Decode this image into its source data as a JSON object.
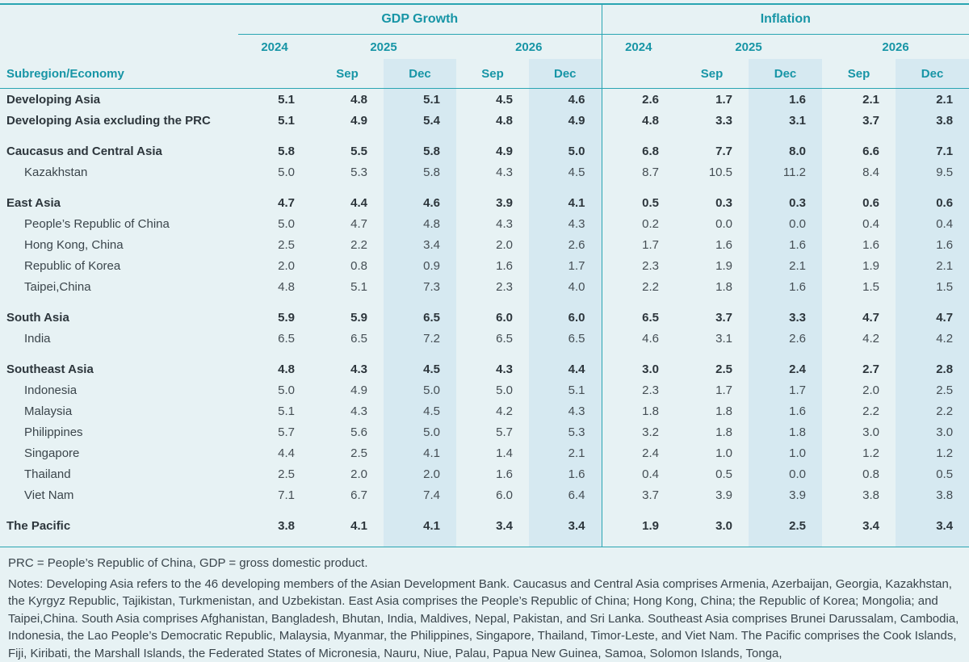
{
  "colors": {
    "background": "#e7f2f4",
    "accent_teal_text": "#1795a6",
    "accent_teal_line": "#2aa5b2",
    "dec_column_highlight": "#d6e9f1",
    "body_text": "#3b454b"
  },
  "chart_data": {
    "type": "table",
    "title": "",
    "header": {
      "row_label": "Subregion/Economy",
      "gdp_label": "GDP Growth",
      "inflation_label": "Inflation",
      "y2024": "2024",
      "y2025": "2025",
      "y2026": "2026",
      "sep": "Sep",
      "dec": "Dec"
    },
    "column_groups": [
      "GDP Growth",
      "Inflation"
    ],
    "columns": [
      "2024",
      "2025 Sep",
      "2025 Dec",
      "2026 Sep",
      "2026 Dec"
    ],
    "rows": [
      {
        "label": "Developing Asia",
        "bold": true,
        "indent": false,
        "gap_before": false,
        "gdp": [
          "5.1",
          "4.8",
          "5.1",
          "4.5",
          "4.6"
        ],
        "inflation": [
          "2.6",
          "1.7",
          "1.6",
          "2.1",
          "2.1"
        ]
      },
      {
        "label": "Developing Asia excluding the PRC",
        "bold": true,
        "indent": false,
        "gap_before": false,
        "gdp": [
          "5.1",
          "4.9",
          "5.4",
          "4.8",
          "4.9"
        ],
        "inflation": [
          "4.8",
          "3.3",
          "3.1",
          "3.7",
          "3.8"
        ]
      },
      {
        "label": "Caucasus and Central Asia",
        "bold": true,
        "indent": false,
        "gap_before": true,
        "gdp": [
          "5.8",
          "5.5",
          "5.8",
          "4.9",
          "5.0"
        ],
        "inflation": [
          "6.8",
          "7.7",
          "8.0",
          "6.6",
          "7.1"
        ]
      },
      {
        "label": "Kazakhstan",
        "bold": false,
        "indent": true,
        "gap_before": false,
        "gdp": [
          "5.0",
          "5.3",
          "5.8",
          "4.3",
          "4.5"
        ],
        "inflation": [
          "8.7",
          "10.5",
          "11.2",
          "8.4",
          "9.5"
        ]
      },
      {
        "label": "East Asia",
        "bold": true,
        "indent": false,
        "gap_before": true,
        "gdp": [
          "4.7",
          "4.4",
          "4.6",
          "3.9",
          "4.1"
        ],
        "inflation": [
          "0.5",
          "0.3",
          "0.3",
          "0.6",
          "0.6"
        ]
      },
      {
        "label": "People’s Republic of China",
        "bold": false,
        "indent": true,
        "gap_before": false,
        "gdp": [
          "5.0",
          "4.7",
          "4.8",
          "4.3",
          "4.3"
        ],
        "inflation": [
          "0.2",
          "0.0",
          "0.0",
          "0.4",
          "0.4"
        ]
      },
      {
        "label": "Hong Kong, China",
        "bold": false,
        "indent": true,
        "gap_before": false,
        "gdp": [
          "2.5",
          "2.2",
          "3.4",
          "2.0",
          "2.6"
        ],
        "inflation": [
          "1.7",
          "1.6",
          "1.6",
          "1.6",
          "1.6"
        ]
      },
      {
        "label": "Republic of Korea",
        "bold": false,
        "indent": true,
        "gap_before": false,
        "gdp": [
          "2.0",
          "0.8",
          "0.9",
          "1.6",
          "1.7"
        ],
        "inflation": [
          "2.3",
          "1.9",
          "2.1",
          "1.9",
          "2.1"
        ]
      },
      {
        "label": "Taipei,China",
        "bold": false,
        "indent": true,
        "gap_before": false,
        "gdp": [
          "4.8",
          "5.1",
          "7.3",
          "2.3",
          "4.0"
        ],
        "inflation": [
          "2.2",
          "1.8",
          "1.6",
          "1.5",
          "1.5"
        ]
      },
      {
        "label": "South Asia",
        "bold": true,
        "indent": false,
        "gap_before": true,
        "gdp": [
          "5.9",
          "5.9",
          "6.5",
          "6.0",
          "6.0"
        ],
        "inflation": [
          "6.5",
          "3.7",
          "3.3",
          "4.7",
          "4.7"
        ]
      },
      {
        "label": "India",
        "bold": false,
        "indent": true,
        "gap_before": false,
        "gdp": [
          "6.5",
          "6.5",
          "7.2",
          "6.5",
          "6.5"
        ],
        "inflation": [
          "4.6",
          "3.1",
          "2.6",
          "4.2",
          "4.2"
        ]
      },
      {
        "label": "Southeast Asia",
        "bold": true,
        "indent": false,
        "gap_before": true,
        "gdp": [
          "4.8",
          "4.3",
          "4.5",
          "4.3",
          "4.4"
        ],
        "inflation": [
          "3.0",
          "2.5",
          "2.4",
          "2.7",
          "2.8"
        ]
      },
      {
        "label": "Indonesia",
        "bold": false,
        "indent": true,
        "gap_before": false,
        "gdp": [
          "5.0",
          "4.9",
          "5.0",
          "5.0",
          "5.1"
        ],
        "inflation": [
          "2.3",
          "1.7",
          "1.7",
          "2.0",
          "2.5"
        ]
      },
      {
        "label": "Malaysia",
        "bold": false,
        "indent": true,
        "gap_before": false,
        "gdp": [
          "5.1",
          "4.3",
          "4.5",
          "4.2",
          "4.3"
        ],
        "inflation": [
          "1.8",
          "1.8",
          "1.6",
          "2.2",
          "2.2"
        ]
      },
      {
        "label": "Philippines",
        "bold": false,
        "indent": true,
        "gap_before": false,
        "gdp": [
          "5.7",
          "5.6",
          "5.0",
          "5.7",
          "5.3"
        ],
        "inflation": [
          "3.2",
          "1.8",
          "1.8",
          "3.0",
          "3.0"
        ]
      },
      {
        "label": "Singapore",
        "bold": false,
        "indent": true,
        "gap_before": false,
        "gdp": [
          "4.4",
          "2.5",
          "4.1",
          "1.4",
          "2.1"
        ],
        "inflation": [
          "2.4",
          "1.0",
          "1.0",
          "1.2",
          "1.2"
        ]
      },
      {
        "label": "Thailand",
        "bold": false,
        "indent": true,
        "gap_before": false,
        "gdp": [
          "2.5",
          "2.0",
          "2.0",
          "1.6",
          "1.6"
        ],
        "inflation": [
          "0.4",
          "0.5",
          "0.0",
          "0.8",
          "0.5"
        ]
      },
      {
        "label": "Viet Nam",
        "bold": false,
        "indent": true,
        "gap_before": false,
        "gdp": [
          "7.1",
          "6.7",
          "7.4",
          "6.0",
          "6.4"
        ],
        "inflation": [
          "3.7",
          "3.9",
          "3.9",
          "3.8",
          "3.8"
        ]
      },
      {
        "label": "The Pacific",
        "bold": true,
        "indent": false,
        "gap_before": true,
        "gdp": [
          "3.8",
          "4.1",
          "4.1",
          "3.4",
          "3.4"
        ],
        "inflation": [
          "1.9",
          "3.0",
          "2.5",
          "3.4",
          "3.4"
        ]
      }
    ]
  },
  "notes": {
    "abbreviations": "PRC = People’s Republic of China, GDP = gross domestic product.",
    "body": "Notes: Developing Asia refers to the 46 developing members of the Asian Development Bank. Caucasus and Central Asia comprises Armenia, Azerbaijan, Georgia, Kazakhstan, the Kyrgyz Republic, Tajikistan, Turkmenistan, and Uzbekistan. East Asia comprises the People’s Republic of China; Hong Kong, China; the Republic of Korea; Mongolia; and Taipei,China. South Asia comprises Afghanistan, Bangladesh, Bhutan, India, Maldives, Nepal, Pakistan, and Sri Lanka. Southeast Asia comprises Brunei Darussalam, Cambodia, Indonesia, the Lao People’s Democratic Republic, Malaysia, Myanmar, the Philippines, Singapore, Thailand, Timor-Leste, and Viet Nam. The Pacific comprises the Cook Islands, Fiji, Kiribati, the Marshall Islands, the Federated States of Micronesia, Nauru, Niue, Palau, Papua New Guinea, Samoa, Solomon Islands, Tonga,"
  }
}
